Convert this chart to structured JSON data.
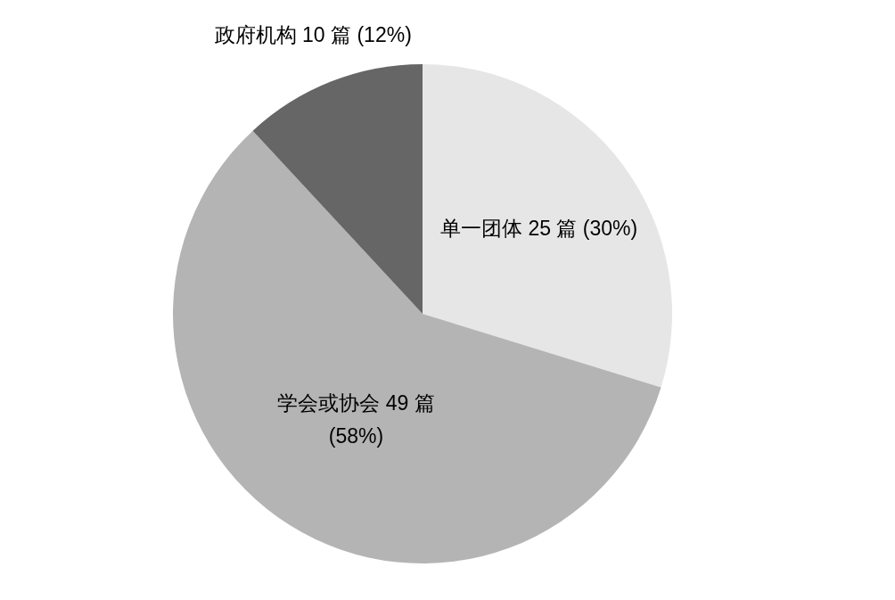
{
  "chart_data": {
    "type": "pie",
    "categories": [
      "单一团体",
      "学会或协会",
      "政府机构"
    ],
    "values": [
      25,
      49,
      10
    ],
    "colors": [
      "#e6e6e6",
      "#b4b4b4",
      "#666666"
    ],
    "value_labels": [
      "25 篇 (30%)",
      "49 篇 (58%)",
      "10 篇 (12%)"
    ]
  }
}
